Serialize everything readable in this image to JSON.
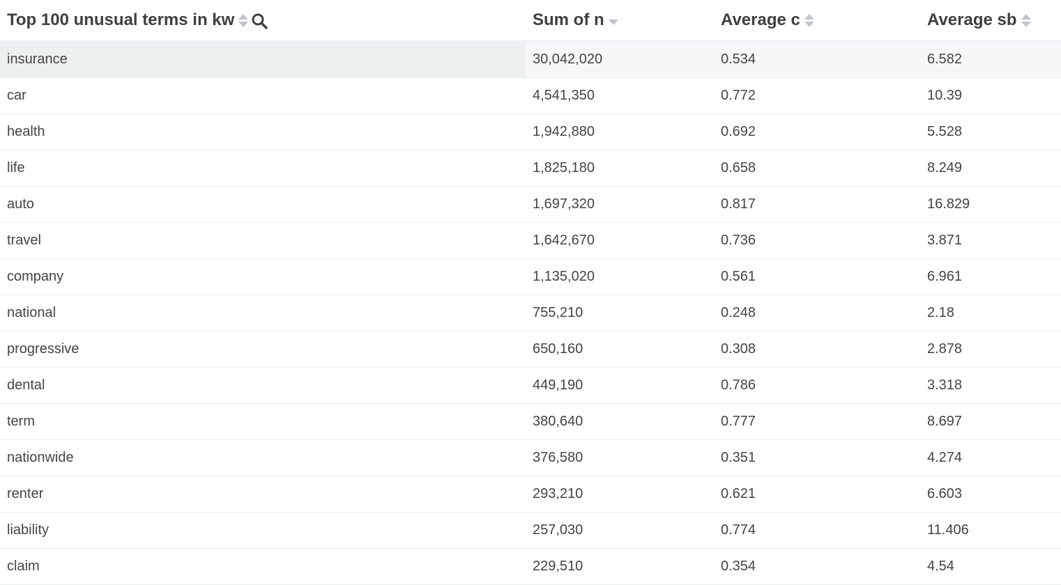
{
  "table": {
    "columns": [
      {
        "label": "Top 100 unusual terms in kw",
        "sort": "none",
        "icon": "search-icon"
      },
      {
        "label": "Sum of n",
        "sort": "descending"
      },
      {
        "label": "Average c",
        "sort": "none"
      },
      {
        "label": "Average sb",
        "sort": "none"
      }
    ],
    "rows": [
      [
        "insurance",
        "30,042,020",
        "0.534",
        "6.582"
      ],
      [
        "car",
        "4,541,350",
        "0.772",
        "10.39"
      ],
      [
        "health",
        "1,942,880",
        "0.692",
        "5.528"
      ],
      [
        "life",
        "1,825,180",
        "0.658",
        "8.249"
      ],
      [
        "auto",
        "1,697,320",
        "0.817",
        "16.829"
      ],
      [
        "travel",
        "1,642,670",
        "0.736",
        "3.871"
      ],
      [
        "company",
        "1,135,020",
        "0.561",
        "6.961"
      ],
      [
        "national",
        "755,210",
        "0.248",
        "2.18"
      ],
      [
        "progressive",
        "650,160",
        "0.308",
        "2.878"
      ],
      [
        "dental",
        "449,190",
        "0.786",
        "3.318"
      ],
      [
        "term",
        "380,640",
        "0.777",
        "8.697"
      ],
      [
        "nationwide",
        "376,580",
        "0.351",
        "4.274"
      ],
      [
        "renter",
        "293,210",
        "0.621",
        "6.603"
      ],
      [
        "liability",
        "257,030",
        "0.774",
        "11.406"
      ],
      [
        "claim",
        "229,510",
        "0.354",
        "4.54"
      ]
    ]
  }
}
